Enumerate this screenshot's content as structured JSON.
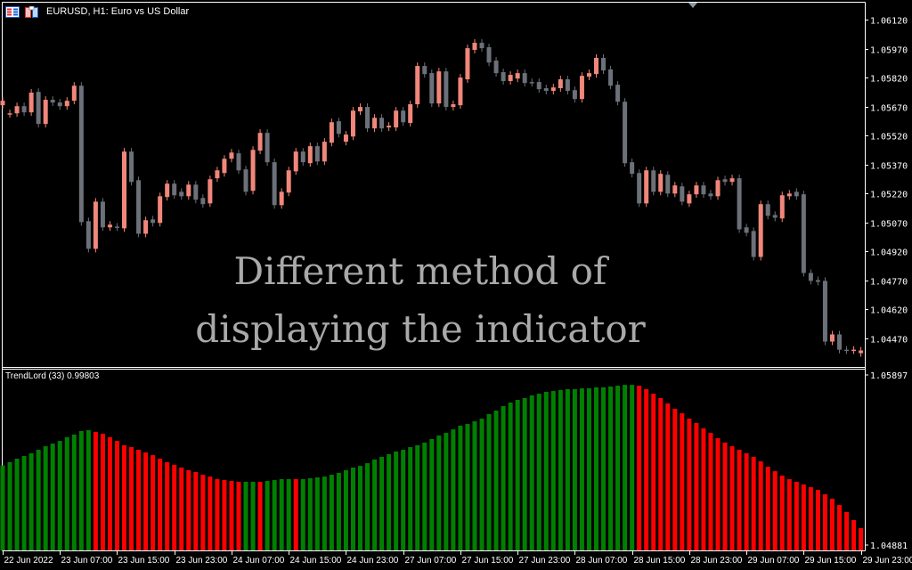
{
  "header": {
    "title": "EURUSD, H1:  Euro vs US Dollar",
    "icons": [
      "symbol-list-icon",
      "chart-window-icon"
    ]
  },
  "indicator": {
    "label": "TrendLord (33) 0.99803"
  },
  "overlay": {
    "line1": "Different method of",
    "line2": "displaying the indicator"
  },
  "colors": {
    "bull": "#f0877a",
    "bear": "#6b7079",
    "hist_up": "#008000",
    "hist_down": "#ff0000",
    "background": "#000000",
    "axis": "#ffffff",
    "overlay_text": "#a9a9a9"
  },
  "chart_data": [
    {
      "type": "candlestick",
      "symbol": "EURUSD",
      "timeframe": "H1",
      "ylim": [
        1.0438,
        1.0622
      ],
      "price_ticks": [
        "1.06120",
        "1.05970",
        "1.05820",
        "1.05670",
        "1.05520",
        "1.05370",
        "1.05220",
        "1.05070",
        "1.04920",
        "1.04770",
        "1.04620",
        "1.04470"
      ],
      "time_ticks": [
        "22 Jun 2022",
        "23 Jun 07:00",
        "23 Jun 15:00",
        "23 Jun 23:00",
        "24 Jun 07:00",
        "24 Jun 15:00",
        "24 Jun 23:00",
        "27 Jun 07:00",
        "27 Jun 15:00",
        "27 Jun 23:00",
        "28 Jun 07:00",
        "28 Jun 15:00",
        "28 Jun 23:00",
        "29 Jun 07:00",
        "29 Jun 15:00",
        "29 Jun 23:00"
      ],
      "bars_per_time_tick": 8,
      "candles_oc": [
        [
          1.05677,
          1.057
        ],
        [
          1.05631,
          1.05635
        ],
        [
          1.05635,
          1.05672
        ],
        [
          1.05672,
          1.0564
        ],
        [
          1.0564,
          1.05742
        ],
        [
          1.05746,
          1.0558
        ],
        [
          1.0558,
          1.05705
        ],
        [
          1.05705,
          1.05691
        ],
        [
          1.05691,
          1.05672
        ],
        [
          1.05672,
          1.057
        ],
        [
          1.057,
          1.05778
        ],
        [
          1.05778,
          1.05072
        ],
        [
          1.05077,
          1.04934
        ],
        [
          1.04934,
          1.05178
        ],
        [
          1.05178,
          1.05045
        ],
        [
          1.05045,
          1.05059
        ],
        [
          1.05049,
          1.05045
        ],
        [
          1.0504,
          1.05437
        ],
        [
          1.05437,
          1.0528
        ],
        [
          1.05289,
          1.05012
        ],
        [
          1.05012,
          1.05082
        ],
        [
          1.05086,
          1.05068
        ],
        [
          1.05068,
          1.05206
        ],
        [
          1.05202,
          1.05271
        ],
        [
          1.05271,
          1.05211
        ],
        [
          1.05229,
          1.05206
        ],
        [
          1.05206,
          1.05266
        ],
        [
          1.05266,
          1.05188
        ],
        [
          1.05197,
          1.05165
        ],
        [
          1.05169,
          1.05294
        ],
        [
          1.05299,
          1.0534
        ],
        [
          1.05326,
          1.054
        ],
        [
          1.054,
          1.05432
        ],
        [
          1.05428,
          1.0534
        ],
        [
          1.05345,
          1.05229
        ],
        [
          1.05234,
          1.05446
        ],
        [
          1.05442,
          1.05534
        ],
        [
          1.05534,
          1.05382
        ],
        [
          1.05382,
          1.0516
        ],
        [
          1.0516,
          1.05229
        ],
        [
          1.05225,
          1.0534
        ],
        [
          1.05335,
          1.05437
        ],
        [
          1.05437,
          1.05382
        ],
        [
          1.05377,
          1.05465
        ],
        [
          1.05465,
          1.05386
        ],
        [
          1.05386,
          1.05488
        ],
        [
          1.05483,
          1.05589
        ],
        [
          1.05594,
          1.05529
        ],
        [
          1.05488,
          1.05525
        ],
        [
          1.05515,
          1.05649
        ],
        [
          1.05645,
          1.05668
        ],
        [
          1.05668,
          1.05557
        ],
        [
          1.05557,
          1.05612
        ],
        [
          1.05612,
          1.05557
        ],
        [
          1.05562,
          1.05571
        ],
        [
          1.05562,
          1.05649
        ],
        [
          1.05649,
          1.05589
        ],
        [
          1.05585,
          1.05682
        ],
        [
          1.05682,
          1.0588
        ],
        [
          1.0588,
          1.05838
        ],
        [
          1.05843,
          1.05686
        ],
        [
          1.05686,
          1.05852
        ],
        [
          1.05852,
          1.05668
        ],
        [
          1.05668,
          1.05682
        ],
        [
          1.05677,
          1.0582
        ],
        [
          1.05811,
          1.05972
        ],
        [
          1.05963,
          1.06
        ],
        [
          1.06,
          1.05972
        ],
        [
          1.05977,
          1.05898
        ],
        [
          1.05908,
          1.05843
        ],
        [
          1.05848,
          1.05802
        ],
        [
          1.05802,
          1.05834
        ],
        [
          1.05815,
          1.05843
        ],
        [
          1.05843,
          1.05792
        ],
        [
          1.05797,
          1.05792
        ],
        [
          1.05797,
          1.0576
        ],
        [
          1.05765,
          1.05751
        ],
        [
          1.05751,
          1.05769
        ],
        [
          1.05765,
          1.05811
        ],
        [
          1.05811,
          1.05751
        ],
        [
          1.05755,
          1.05709
        ],
        [
          1.05709,
          1.05829
        ],
        [
          1.05825,
          1.05843
        ],
        [
          1.05838,
          1.05922
        ],
        [
          1.05922,
          1.05857
        ],
        [
          1.05862,
          1.05778
        ],
        [
          1.05783,
          1.05695
        ],
        [
          1.05695,
          1.05377
        ],
        [
          1.05382,
          1.05322
        ],
        [
          1.05326,
          1.05169
        ],
        [
          1.05169,
          1.0534
        ],
        [
          1.0534,
          1.05229
        ],
        [
          1.05229,
          1.05322
        ],
        [
          1.05317,
          1.0522
        ],
        [
          1.0522,
          1.05262
        ],
        [
          1.05257,
          1.05178
        ],
        [
          1.05169,
          1.05216
        ],
        [
          1.05216,
          1.05262
        ],
        [
          1.05262,
          1.05216
        ],
        [
          1.0522,
          1.05206
        ],
        [
          1.05206,
          1.05289
        ],
        [
          1.05294,
          1.0528
        ],
        [
          1.0528,
          1.05299
        ],
        [
          1.05299,
          1.05035
        ],
        [
          1.05045,
          1.05017
        ],
        [
          1.05026,
          1.04892
        ],
        [
          1.04892,
          1.05165
        ],
        [
          1.05165,
          1.05105
        ],
        [
          1.05109,
          1.05095
        ],
        [
          1.05091,
          1.05211
        ],
        [
          1.05206,
          1.0522
        ],
        [
          1.05229,
          1.05206
        ],
        [
          1.05216,
          1.04809
        ],
        [
          1.04809,
          1.04768
        ],
        [
          1.04772,
          1.04763
        ],
        [
          1.04768,
          1.04454
        ],
        [
          1.04454,
          1.04491
        ],
        [
          1.04491,
          1.04412
        ],
        [
          1.04412,
          1.04408
        ],
        [
          1.04408,
          1.04412
        ],
        [
          1.04394,
          1.04408
        ]
      ]
    },
    {
      "type": "bar",
      "name": "TrendLord (33)",
      "ylim": [
        1.04881,
        1.05897
      ],
      "price_ticks": [
        "1.05897",
        "1.04881"
      ],
      "values": [
        1.05356,
        1.05376,
        1.05397,
        1.05413,
        1.05429,
        1.0545,
        1.05471,
        1.05487,
        1.05503,
        1.05525,
        1.05541,
        1.05562,
        1.05567,
        1.05557,
        1.05546,
        1.05525,
        1.05503,
        1.05477,
        1.05466,
        1.0545,
        1.05434,
        1.05418,
        1.05397,
        1.05376,
        1.0536,
        1.05344,
        1.05328,
        1.05317,
        1.05301,
        1.0529,
        1.05275,
        1.05269,
        1.05264,
        1.05259,
        1.05259,
        1.05259,
        1.05259,
        1.05264,
        1.05269,
        1.05275,
        1.05275,
        1.05275,
        1.05275,
        1.0528,
        1.05285,
        1.0529,
        1.05301,
        1.05312,
        1.05328,
        1.05344,
        1.05354,
        1.0537,
        1.05392,
        1.05408,
        1.05424,
        1.0544,
        1.0545,
        1.05466,
        1.05477,
        1.05493,
        1.05514,
        1.05535,
        1.05551,
        1.05572,
        1.05594,
        1.05604,
        1.0562,
        1.05636,
        1.05663,
        1.05684,
        1.05711,
        1.05732,
        1.05748,
        1.05759,
        1.05775,
        1.05785,
        1.05796,
        1.05801,
        1.05807,
        1.05812,
        1.05812,
        1.05817,
        1.05817,
        1.05823,
        1.05823,
        1.05828,
        1.05833,
        1.05838,
        1.05838,
        1.05833,
        1.05812,
        1.05785,
        1.05759,
        1.05727,
        1.05695,
        1.05668,
        1.05636,
        1.0561,
        1.05578,
        1.05551,
        1.05519,
        1.05493,
        1.05471,
        1.0545,
        1.05429,
        1.05408,
        1.05381,
        1.05349,
        1.05322,
        1.05296,
        1.05275,
        1.05259,
        1.05243,
        1.05227,
        1.05211,
        1.05184,
        1.05158,
        1.0512,
        1.05078,
        1.0503,
        1.04982
      ],
      "directions": "ggggggggggggg rrrrrrrrrrrrrrrrrrrrr ggr ggggr ggggggggggggggggggggggggggggggggggggggggggggggg rrrrrrrrrrrrrrrrrrrrrrrrrrrrrrrrr"
    }
  ]
}
